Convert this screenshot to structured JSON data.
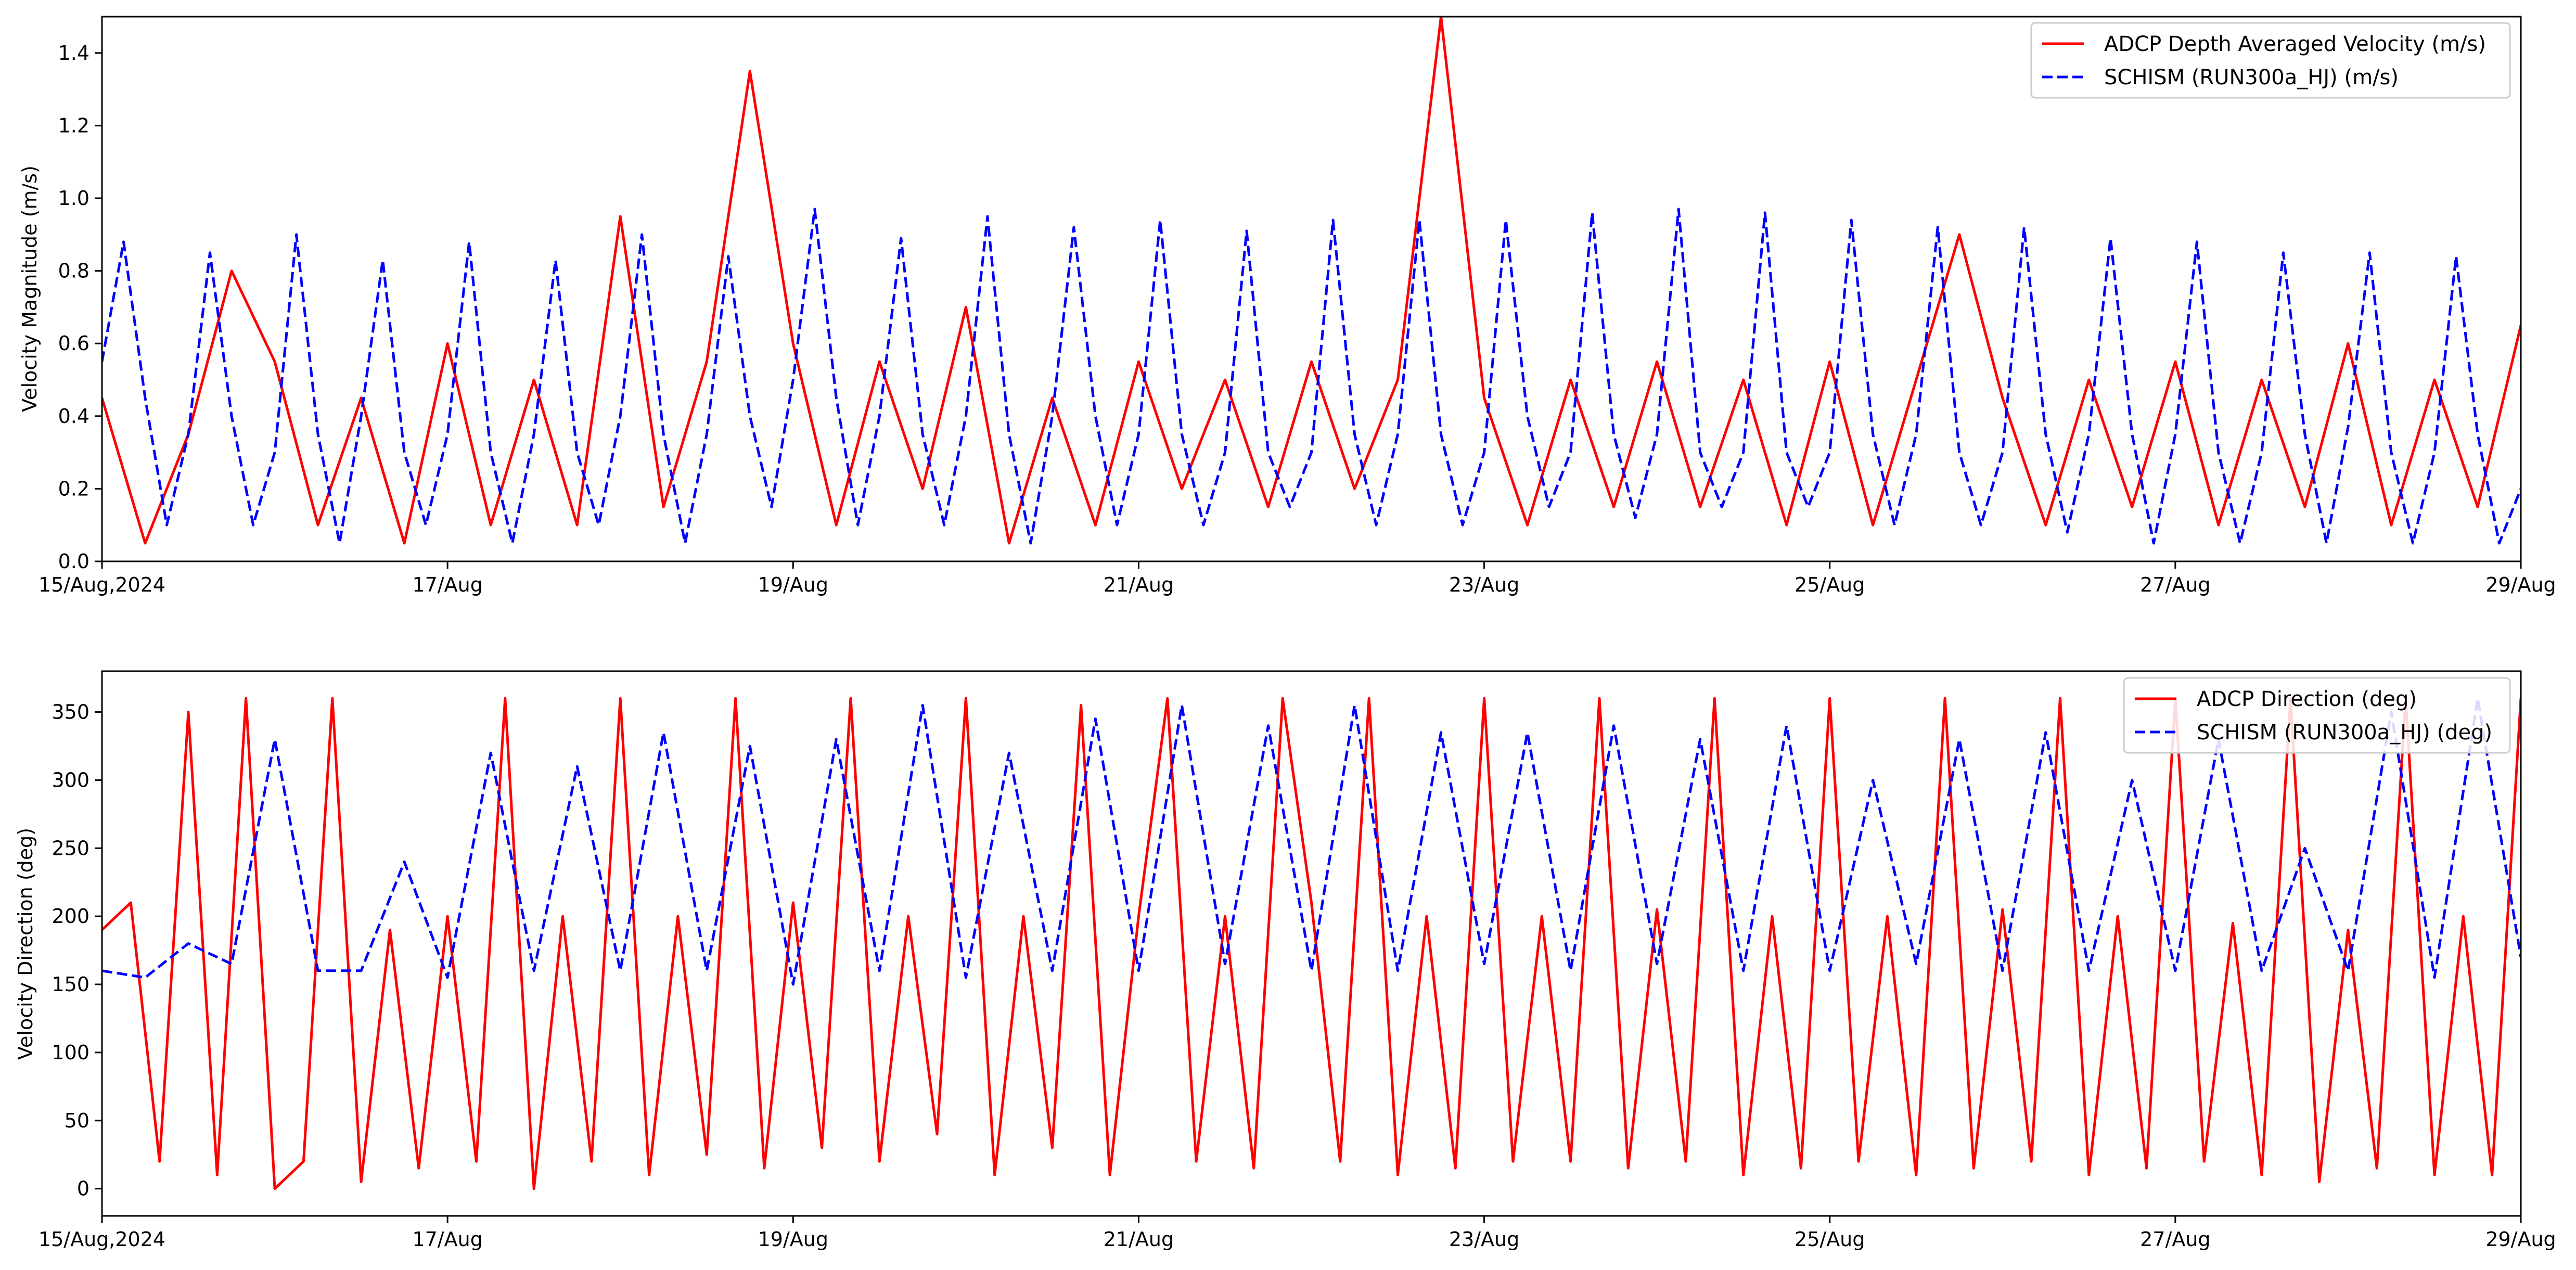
{
  "chart_data": [
    {
      "type": "line",
      "ylabel": "Velocity Magnitude (m/s)",
      "xlabel": "",
      "x_unit": "day",
      "xlim": [
        "2024-08-15",
        "2024-08-29"
      ],
      "ylim": [
        0,
        1.5
      ],
      "x_tick_labels": [
        "15/Aug,2024",
        "17/Aug",
        "19/Aug",
        "21/Aug",
        "23/Aug",
        "25/Aug",
        "27/Aug",
        "29/Aug"
      ],
      "y_ticks": [
        0.0,
        0.2,
        0.4,
        0.6,
        0.8,
        1.0,
        1.2,
        1.4
      ],
      "y_tick_labels": [
        "0.0",
        "0.2",
        "0.4",
        "0.6",
        "0.8",
        "1.0",
        "1.2",
        "1.4"
      ],
      "legend_position": "upper-right",
      "grid": false,
      "series": [
        {
          "name": "ADCP Depth Averaged Velocity (m/s)",
          "color": "#ff0000",
          "style": "solid",
          "x": [
            "2024-08-15T00:00",
            "2024-08-15T06:00",
            "2024-08-15T12:00",
            "2024-08-15T18:00",
            "2024-08-16T00:00",
            "2024-08-16T06:00",
            "2024-08-16T12:00",
            "2024-08-16T18:00",
            "2024-08-17T00:00",
            "2024-08-17T06:00",
            "2024-08-17T12:00",
            "2024-08-17T18:00",
            "2024-08-18T00:00",
            "2024-08-18T06:00",
            "2024-08-18T12:00",
            "2024-08-18T18:00",
            "2024-08-19T00:00",
            "2024-08-19T06:00",
            "2024-08-19T12:00",
            "2024-08-19T18:00",
            "2024-08-20T00:00",
            "2024-08-20T06:00",
            "2024-08-20T12:00",
            "2024-08-20T18:00",
            "2024-08-21T00:00",
            "2024-08-21T06:00",
            "2024-08-21T12:00",
            "2024-08-21T18:00",
            "2024-08-22T00:00",
            "2024-08-22T06:00",
            "2024-08-22T12:00",
            "2024-08-22T18:00",
            "2024-08-23T00:00",
            "2024-08-23T06:00",
            "2024-08-23T12:00",
            "2024-08-23T18:00",
            "2024-08-24T00:00",
            "2024-08-24T06:00",
            "2024-08-24T12:00",
            "2024-08-24T18:00",
            "2024-08-25T00:00",
            "2024-08-25T06:00",
            "2024-08-25T12:00",
            "2024-08-25T18:00",
            "2024-08-26T00:00",
            "2024-08-26T06:00",
            "2024-08-26T12:00",
            "2024-08-26T18:00",
            "2024-08-27T00:00",
            "2024-08-27T06:00",
            "2024-08-27T12:00",
            "2024-08-27T18:00",
            "2024-08-28T00:00",
            "2024-08-28T06:00",
            "2024-08-28T12:00",
            "2024-08-28T18:00",
            "2024-08-29T00:00"
          ],
          "values": [
            0.45,
            0.05,
            0.35,
            0.8,
            0.55,
            0.1,
            0.45,
            0.05,
            0.6,
            0.1,
            0.5,
            0.1,
            0.95,
            0.15,
            0.55,
            1.35,
            0.6,
            0.1,
            0.55,
            0.2,
            0.7,
            0.05,
            0.45,
            0.1,
            0.55,
            0.2,
            0.5,
            0.15,
            0.55,
            0.2,
            0.5,
            1.5,
            0.45,
            0.1,
            0.5,
            0.15,
            0.55,
            0.15,
            0.5,
            0.1,
            0.55,
            0.1,
            0.5,
            0.9,
            0.45,
            0.1,
            0.5,
            0.15,
            0.55,
            0.1,
            0.5,
            0.15,
            0.6,
            0.1,
            0.5,
            0.15,
            0.65
          ]
        },
        {
          "name": "SCHISM (RUN300a_HJ) (m/s)",
          "color": "#0000ff",
          "style": "dashed",
          "x": [
            "2024-08-15T00:00",
            "2024-08-15T03:00",
            "2024-08-15T06:00",
            "2024-08-15T09:00",
            "2024-08-15T12:00",
            "2024-08-15T15:00",
            "2024-08-15T18:00",
            "2024-08-15T21:00",
            "2024-08-16T00:00",
            "2024-08-16T03:00",
            "2024-08-16T06:00",
            "2024-08-16T09:00",
            "2024-08-16T12:00",
            "2024-08-16T15:00",
            "2024-08-16T18:00",
            "2024-08-16T21:00",
            "2024-08-17T00:00",
            "2024-08-17T03:00",
            "2024-08-17T06:00",
            "2024-08-17T09:00",
            "2024-08-17T12:00",
            "2024-08-17T15:00",
            "2024-08-17T18:00",
            "2024-08-17T21:00",
            "2024-08-18T00:00",
            "2024-08-18T03:00",
            "2024-08-18T06:00",
            "2024-08-18T09:00",
            "2024-08-18T12:00",
            "2024-08-18T15:00",
            "2024-08-18T18:00",
            "2024-08-18T21:00",
            "2024-08-19T00:00",
            "2024-08-19T03:00",
            "2024-08-19T06:00",
            "2024-08-19T09:00",
            "2024-08-19T12:00",
            "2024-08-19T15:00",
            "2024-08-19T18:00",
            "2024-08-19T21:00",
            "2024-08-20T00:00",
            "2024-08-20T03:00",
            "2024-08-20T06:00",
            "2024-08-20T09:00",
            "2024-08-20T12:00",
            "2024-08-20T15:00",
            "2024-08-20T18:00",
            "2024-08-20T21:00",
            "2024-08-21T00:00",
            "2024-08-21T03:00",
            "2024-08-21T06:00",
            "2024-08-21T09:00",
            "2024-08-21T12:00",
            "2024-08-21T15:00",
            "2024-08-21T18:00",
            "2024-08-21T21:00",
            "2024-08-22T00:00",
            "2024-08-22T03:00",
            "2024-08-22T06:00",
            "2024-08-22T09:00",
            "2024-08-22T12:00",
            "2024-08-22T15:00",
            "2024-08-22T18:00",
            "2024-08-22T21:00",
            "2024-08-23T00:00",
            "2024-08-23T03:00",
            "2024-08-23T06:00",
            "2024-08-23T09:00",
            "2024-08-23T12:00",
            "2024-08-23T15:00",
            "2024-08-23T18:00",
            "2024-08-23T21:00",
            "2024-08-24T00:00",
            "2024-08-24T03:00",
            "2024-08-24T06:00",
            "2024-08-24T09:00",
            "2024-08-24T12:00",
            "2024-08-24T15:00",
            "2024-08-24T18:00",
            "2024-08-24T21:00",
            "2024-08-25T00:00",
            "2024-08-25T03:00",
            "2024-08-25T06:00",
            "2024-08-25T09:00",
            "2024-08-25T12:00",
            "2024-08-25T15:00",
            "2024-08-25T18:00",
            "2024-08-25T21:00",
            "2024-08-26T00:00",
            "2024-08-26T03:00",
            "2024-08-26T06:00",
            "2024-08-26T09:00",
            "2024-08-26T12:00",
            "2024-08-26T15:00",
            "2024-08-26T18:00",
            "2024-08-26T21:00",
            "2024-08-27T00:00",
            "2024-08-27T03:00",
            "2024-08-27T06:00",
            "2024-08-27T09:00",
            "2024-08-27T12:00",
            "2024-08-27T15:00",
            "2024-08-27T18:00",
            "2024-08-27T21:00",
            "2024-08-28T00:00",
            "2024-08-28T03:00",
            "2024-08-28T06:00",
            "2024-08-28T09:00",
            "2024-08-28T12:00",
            "2024-08-28T15:00",
            "2024-08-28T18:00",
            "2024-08-28T21:00",
            "2024-08-29T00:00"
          ],
          "values": [
            0.55,
            0.88,
            0.45,
            0.1,
            0.35,
            0.85,
            0.4,
            0.1,
            0.3,
            0.9,
            0.35,
            0.05,
            0.4,
            0.83,
            0.3,
            0.1,
            0.35,
            0.88,
            0.3,
            0.05,
            0.35,
            0.83,
            0.3,
            0.1,
            0.4,
            0.9,
            0.35,
            0.05,
            0.35,
            0.84,
            0.4,
            0.15,
            0.5,
            0.97,
            0.45,
            0.1,
            0.4,
            0.89,
            0.35,
            0.1,
            0.4,
            0.95,
            0.35,
            0.05,
            0.4,
            0.92,
            0.4,
            0.1,
            0.35,
            0.94,
            0.35,
            0.1,
            0.3,
            0.91,
            0.3,
            0.15,
            0.3,
            0.94,
            0.35,
            0.1,
            0.35,
            0.94,
            0.35,
            0.1,
            0.3,
            0.94,
            0.4,
            0.15,
            0.3,
            0.96,
            0.35,
            0.12,
            0.35,
            0.97,
            0.3,
            0.15,
            0.3,
            0.96,
            0.3,
            0.15,
            0.3,
            0.94,
            0.35,
            0.1,
            0.35,
            0.92,
            0.3,
            0.1,
            0.3,
            0.92,
            0.35,
            0.08,
            0.35,
            0.89,
            0.35,
            0.05,
            0.35,
            0.88,
            0.3,
            0.05,
            0.3,
            0.85,
            0.35,
            0.05,
            0.37,
            0.85,
            0.3,
            0.05,
            0.3,
            0.84,
            0.35,
            0.05,
            0.2
          ]
        }
      ]
    },
    {
      "type": "line",
      "ylabel": "Velocity Direction (deg)",
      "xlabel": "",
      "x_unit": "day",
      "xlim": [
        "2024-08-15",
        "2024-08-29"
      ],
      "ylim": [
        -20,
        380
      ],
      "x_tick_labels": [
        "15/Aug,2024",
        "17/Aug",
        "19/Aug",
        "21/Aug",
        "23/Aug",
        "25/Aug",
        "27/Aug",
        "29/Aug"
      ],
      "y_ticks": [
        0,
        50,
        100,
        150,
        200,
        250,
        300,
        350
      ],
      "y_tick_labels": [
        "0",
        "50",
        "100",
        "150",
        "200",
        "250",
        "300",
        "350"
      ],
      "legend_position": "upper-right",
      "grid": false,
      "series": [
        {
          "name": "ADCP Direction (deg)",
          "color": "#ff0000",
          "style": "solid",
          "x": [
            "2024-08-15T00:00",
            "2024-08-15T04:00",
            "2024-08-15T08:00",
            "2024-08-15T12:00",
            "2024-08-15T16:00",
            "2024-08-15T20:00",
            "2024-08-16T00:00",
            "2024-08-16T04:00",
            "2024-08-16T08:00",
            "2024-08-16T12:00",
            "2024-08-16T16:00",
            "2024-08-16T20:00",
            "2024-08-17T00:00",
            "2024-08-17T04:00",
            "2024-08-17T08:00",
            "2024-08-17T12:00",
            "2024-08-17T16:00",
            "2024-08-17T20:00",
            "2024-08-18T00:00",
            "2024-08-18T04:00",
            "2024-08-18T08:00",
            "2024-08-18T12:00",
            "2024-08-18T16:00",
            "2024-08-18T20:00",
            "2024-08-19T00:00",
            "2024-08-19T04:00",
            "2024-08-19T08:00",
            "2024-08-19T12:00",
            "2024-08-19T16:00",
            "2024-08-19T20:00",
            "2024-08-20T00:00",
            "2024-08-20T04:00",
            "2024-08-20T08:00",
            "2024-08-20T12:00",
            "2024-08-20T16:00",
            "2024-08-20T20:00",
            "2024-08-21T00:00",
            "2024-08-21T04:00",
            "2024-08-21T08:00",
            "2024-08-21T12:00",
            "2024-08-21T16:00",
            "2024-08-21T20:00",
            "2024-08-22T00:00",
            "2024-08-22T04:00",
            "2024-08-22T08:00",
            "2024-08-22T12:00",
            "2024-08-22T16:00",
            "2024-08-22T20:00",
            "2024-08-23T00:00",
            "2024-08-23T04:00",
            "2024-08-23T08:00",
            "2024-08-23T12:00",
            "2024-08-23T16:00",
            "2024-08-23T20:00",
            "2024-08-24T00:00",
            "2024-08-24T04:00",
            "2024-08-24T08:00",
            "2024-08-24T12:00",
            "2024-08-24T16:00",
            "2024-08-24T20:00",
            "2024-08-25T00:00",
            "2024-08-25T04:00",
            "2024-08-25T08:00",
            "2024-08-25T12:00",
            "2024-08-25T16:00",
            "2024-08-25T20:00",
            "2024-08-26T00:00",
            "2024-08-26T04:00",
            "2024-08-26T08:00",
            "2024-08-26T12:00",
            "2024-08-26T16:00",
            "2024-08-26T20:00",
            "2024-08-27T00:00",
            "2024-08-27T04:00",
            "2024-08-27T08:00",
            "2024-08-27T12:00",
            "2024-08-27T16:00",
            "2024-08-27T20:00",
            "2024-08-28T00:00",
            "2024-08-28T04:00",
            "2024-08-28T08:00",
            "2024-08-28T12:00",
            "2024-08-28T16:00",
            "2024-08-28T20:00",
            "2024-08-29T00:00"
          ],
          "values": [
            190,
            210,
            20,
            350,
            10,
            360,
            0,
            20,
            360,
            5,
            190,
            15,
            200,
            20,
            360,
            0,
            200,
            20,
            360,
            10,
            200,
            25,
            360,
            15,
            210,
            30,
            360,
            20,
            200,
            40,
            360,
            10,
            200,
            30,
            355,
            10,
            200,
            360,
            20,
            200,
            15,
            360,
            210,
            20,
            360,
            10,
            200,
            15,
            360,
            20,
            200,
            20,
            360,
            15,
            205,
            20,
            360,
            10,
            200,
            15,
            360,
            20,
            200,
            10,
            360,
            15,
            205,
            20,
            360,
            10,
            200,
            15,
            360,
            20,
            195,
            10,
            360,
            5,
            190,
            15,
            360,
            10,
            200,
            10,
            360
          ]
        },
        {
          "name": "SCHISM (RUN300a_HJ) (deg)",
          "color": "#0000ff",
          "style": "dashed",
          "x": [
            "2024-08-15T00:00",
            "2024-08-15T06:00",
            "2024-08-15T12:00",
            "2024-08-15T18:00",
            "2024-08-16T00:00",
            "2024-08-16T06:00",
            "2024-08-16T12:00",
            "2024-08-16T18:00",
            "2024-08-17T00:00",
            "2024-08-17T06:00",
            "2024-08-17T12:00",
            "2024-08-17T18:00",
            "2024-08-18T00:00",
            "2024-08-18T06:00",
            "2024-08-18T12:00",
            "2024-08-18T18:00",
            "2024-08-19T00:00",
            "2024-08-19T06:00",
            "2024-08-19T12:00",
            "2024-08-19T18:00",
            "2024-08-20T00:00",
            "2024-08-20T06:00",
            "2024-08-20T12:00",
            "2024-08-20T18:00",
            "2024-08-21T00:00",
            "2024-08-21T06:00",
            "2024-08-21T12:00",
            "2024-08-21T18:00",
            "2024-08-22T00:00",
            "2024-08-22T06:00",
            "2024-08-22T12:00",
            "2024-08-22T18:00",
            "2024-08-23T00:00",
            "2024-08-23T06:00",
            "2024-08-23T12:00",
            "2024-08-23T18:00",
            "2024-08-24T00:00",
            "2024-08-24T06:00",
            "2024-08-24T12:00",
            "2024-08-24T18:00",
            "2024-08-25T00:00",
            "2024-08-25T06:00",
            "2024-08-25T12:00",
            "2024-08-25T18:00",
            "2024-08-26T00:00",
            "2024-08-26T06:00",
            "2024-08-26T12:00",
            "2024-08-26T18:00",
            "2024-08-27T00:00",
            "2024-08-27T06:00",
            "2024-08-27T12:00",
            "2024-08-27T18:00",
            "2024-08-28T00:00",
            "2024-08-28T06:00",
            "2024-08-28T12:00",
            "2024-08-28T18:00",
            "2024-08-29T00:00"
          ],
          "values": [
            160,
            155,
            180,
            165,
            330,
            160,
            160,
            240,
            155,
            320,
            160,
            310,
            160,
            335,
            160,
            325,
            150,
            330,
            160,
            355,
            155,
            320,
            160,
            345,
            160,
            355,
            165,
            340,
            160,
            355,
            160,
            335,
            165,
            335,
            160,
            340,
            165,
            330,
            160,
            340,
            160,
            300,
            165,
            330,
            160,
            335,
            160,
            300,
            160,
            330,
            160,
            250,
            160,
            350,
            155,
            360,
            170
          ]
        }
      ]
    }
  ]
}
